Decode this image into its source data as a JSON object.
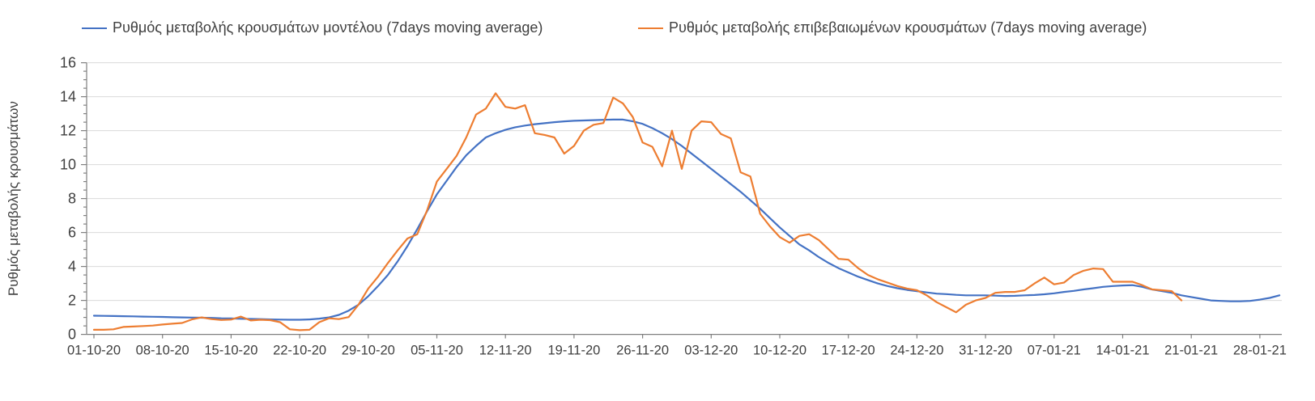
{
  "legend": [
    {
      "label": "Ρυθμός μεταβολής κρουσμάτων μοντέλου (7days moving average)",
      "color": "#4472C4"
    },
    {
      "label": "Ρυθμός μεταβολής επιβεβαιωμένων κρουσμάτων (7days moving average)",
      "color": "#ED7D31"
    }
  ],
  "colors": {
    "model_line": "#4472C4",
    "confirmed_line": "#ED7D31",
    "gridline": "#d9d9d9",
    "axis": "#808080",
    "text": "#3f3f3f"
  },
  "chart_data": {
    "type": "line",
    "title": "",
    "xlabel": "",
    "ylabel": "Ρυθμός μεταβολής κρουσμάτων",
    "ylim": [
      0,
      16
    ],
    "y_ticks": [
      0,
      2,
      4,
      6,
      8,
      10,
      12,
      14,
      16
    ],
    "y_minor_tick_step": 0.5,
    "grid": true,
    "legend_position": "top",
    "x_tick_labels": [
      "01-10-20",
      "08-10-20",
      "15-10-20",
      "22-10-20",
      "29-10-20",
      "05-11-20",
      "12-11-20",
      "19-11-20",
      "26-11-20",
      "03-12-20",
      "10-12-20",
      "17-12-20",
      "24-12-20",
      "31-12-20",
      "07-01-21",
      "14-01-21",
      "21-01-21",
      "28-01-21"
    ],
    "x_unit": "days since 01-10-20, daily values",
    "series": [
      {
        "name": "Ρυθμός μεταβολής κρουσμάτων μοντέλου (7days moving average)",
        "color": "#4472C4",
        "start_day": 0,
        "values": [
          1.1,
          1.09,
          1.08,
          1.07,
          1.06,
          1.05,
          1.04,
          1.03,
          1.01,
          1.0,
          0.99,
          0.98,
          0.97,
          0.95,
          0.94,
          0.92,
          0.91,
          0.9,
          0.88,
          0.87,
          0.86,
          0.86,
          0.88,
          0.93,
          1.0,
          1.15,
          1.4,
          1.75,
          2.25,
          2.85,
          3.5,
          4.3,
          5.2,
          6.2,
          7.25,
          8.25,
          9.05,
          9.85,
          10.55,
          11.1,
          11.6,
          11.85,
          12.05,
          12.2,
          12.3,
          12.38,
          12.44,
          12.5,
          12.55,
          12.58,
          12.6,
          12.62,
          12.64,
          12.65,
          12.65,
          12.55,
          12.4,
          12.15,
          11.85,
          11.5,
          11.1,
          10.65,
          10.2,
          9.75,
          9.3,
          8.85,
          8.4,
          7.9,
          7.4,
          6.85,
          6.3,
          5.8,
          5.3,
          4.95,
          4.55,
          4.2,
          3.9,
          3.65,
          3.4,
          3.2,
          3.0,
          2.85,
          2.72,
          2.62,
          2.55,
          2.47,
          2.4,
          2.37,
          2.33,
          2.3,
          2.3,
          2.3,
          2.28,
          2.26,
          2.27,
          2.3,
          2.32,
          2.36,
          2.42,
          2.5,
          2.56,
          2.65,
          2.72,
          2.8,
          2.85,
          2.88,
          2.9,
          2.8,
          2.65,
          2.55,
          2.45,
          2.3,
          2.2,
          2.1,
          2.0,
          1.97,
          1.95,
          1.95,
          1.97,
          2.05,
          2.15,
          2.3
        ]
      },
      {
        "name": "Ρυθμός μεταβολής επιβεβαιωμένων κρουσμάτων (7days moving average)",
        "color": "#ED7D31",
        "start_day": 0,
        "values": [
          0.27,
          0.27,
          0.3,
          0.44,
          0.46,
          0.49,
          0.52,
          0.58,
          0.63,
          0.67,
          0.88,
          1.0,
          0.9,
          0.85,
          0.87,
          1.05,
          0.82,
          0.86,
          0.84,
          0.72,
          0.3,
          0.25,
          0.27,
          0.72,
          0.95,
          0.9,
          1.02,
          1.75,
          2.7,
          3.4,
          4.2,
          4.95,
          5.65,
          5.9,
          7.3,
          9.0,
          9.75,
          10.5,
          11.6,
          12.95,
          13.3,
          14.2,
          13.4,
          13.3,
          13.5,
          11.85,
          11.75,
          11.6,
          10.65,
          11.1,
          12.0,
          12.35,
          12.45,
          13.95,
          13.6,
          12.8,
          11.3,
          11.05,
          9.9,
          12.0,
          9.75,
          12.0,
          12.55,
          12.5,
          11.8,
          11.55,
          9.55,
          9.3,
          7.1,
          6.36,
          5.73,
          5.4,
          5.8,
          5.9,
          5.55,
          5.0,
          4.45,
          4.4,
          3.9,
          3.5,
          3.25,
          3.05,
          2.85,
          2.7,
          2.6,
          2.3,
          1.9,
          1.6,
          1.3,
          1.75,
          2.0,
          2.15,
          2.45,
          2.5,
          2.5,
          2.6,
          3.0,
          3.35,
          2.95,
          3.05,
          3.5,
          3.75,
          3.88,
          3.85,
          3.1,
          3.1,
          3.1,
          2.9,
          2.65,
          2.6,
          2.55,
          2.0
        ]
      }
    ]
  }
}
